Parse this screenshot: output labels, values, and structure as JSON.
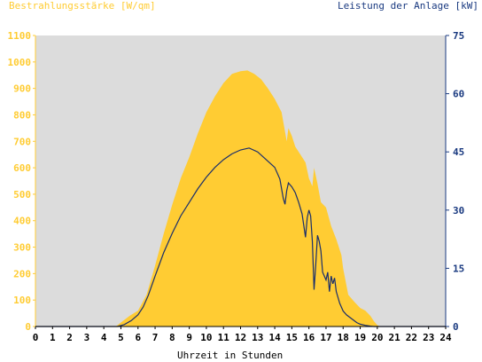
{
  "chart_data": {
    "type": "area",
    "left_axis_title": "Bestrahlungsstärke [W/qm]",
    "right_axis_title": "Leistung der Anlage [kW]",
    "xlabel": "Uhrzeit in Stunden",
    "xlim": [
      0,
      24
    ],
    "y_left_lim": [
      0,
      1100
    ],
    "y_right_lim": [
      0,
      75
    ],
    "x_ticks": [
      "0",
      "1",
      "2",
      "3",
      "4",
      "5",
      "6",
      "7",
      "8",
      "9",
      "10",
      "11",
      "12",
      "13",
      "14",
      "15",
      "16",
      "17",
      "18",
      "19",
      "20",
      "21",
      "22",
      "23",
      "24"
    ],
    "y_left_ticks": [
      "0",
      "100",
      "200",
      "300",
      "400",
      "500",
      "600",
      "700",
      "800",
      "900",
      "1000",
      "1100"
    ],
    "y_right_ticks": [
      "0",
      "15",
      "30",
      "45",
      "60",
      "75"
    ],
    "colors": {
      "irradiance": "#ffcc33",
      "power": "#1a2e6b",
      "plot_bg": "#dcdcdc",
      "left_axis_text": "#ffcc33",
      "right_axis_text": "#1a3a80",
      "x_axis_text": "#000000"
    },
    "series": [
      {
        "name": "Bestrahlungsstärke",
        "axis": "left",
        "x": [
          0,
          4.7,
          5.0,
          5.5,
          6.0,
          6.5,
          7.0,
          7.5,
          8.0,
          8.5,
          9.0,
          9.5,
          10.0,
          10.5,
          11.0,
          11.5,
          12.0,
          12.4,
          12.8,
          13.2,
          13.6,
          14.0,
          14.4,
          14.7,
          14.8,
          15.0,
          15.2,
          15.5,
          15.8,
          16.0,
          16.2,
          16.3,
          16.5,
          16.7,
          17.0,
          17.3,
          17.6,
          17.9,
          18.0,
          18.3,
          18.7,
          19.0,
          19.3,
          19.6,
          19.8,
          20.0,
          20.2,
          24
        ],
        "values": [
          0,
          0,
          15,
          40,
          60,
          120,
          230,
          350,
          460,
          560,
          640,
          730,
          810,
          870,
          920,
          955,
          965,
          968,
          955,
          935,
          900,
          860,
          810,
          700,
          750,
          720,
          680,
          650,
          620,
          560,
          530,
          600,
          540,
          470,
          450,
          380,
          330,
          270,
          220,
          120,
          90,
          70,
          60,
          40,
          20,
          5,
          0,
          0
        ]
      },
      {
        "name": "Leistung der Anlage",
        "axis": "right",
        "x": [
          0,
          4.8,
          5.2,
          5.6,
          6.0,
          6.3,
          6.6,
          7.0,
          7.5,
          8.0,
          8.5,
          9.0,
          9.5,
          10.0,
          10.5,
          11.0,
          11.5,
          12.0,
          12.5,
          13.0,
          13.5,
          14.0,
          14.3,
          14.5,
          14.6,
          14.7,
          14.8,
          15.0,
          15.2,
          15.4,
          15.6,
          15.8,
          15.9,
          16.0,
          16.1,
          16.2,
          16.3,
          16.4,
          16.5,
          16.6,
          16.7,
          16.8,
          17.0,
          17.1,
          17.2,
          17.3,
          17.4,
          17.5,
          17.6,
          17.8,
          18.0,
          18.2,
          18.5,
          18.8,
          19.0,
          19.3,
          19.6,
          19.8,
          24
        ],
        "values": [
          0,
          0,
          0.5,
          1.5,
          3,
          5,
          8,
          13,
          19,
          24,
          28.5,
          32,
          35.5,
          38.5,
          41,
          43,
          44.5,
          45.5,
          46,
          45,
          43,
          41,
          38,
          33,
          31.5,
          35,
          37,
          36,
          34.5,
          32,
          29,
          23,
          28,
          30,
          28.5,
          22,
          9.5,
          16,
          23.5,
          22,
          19.5,
          14,
          12,
          14,
          9,
          13,
          11,
          12.5,
          9,
          6,
          4,
          3,
          2,
          1,
          0.6,
          0.3,
          0.1,
          0,
          0
        ]
      }
    ]
  }
}
